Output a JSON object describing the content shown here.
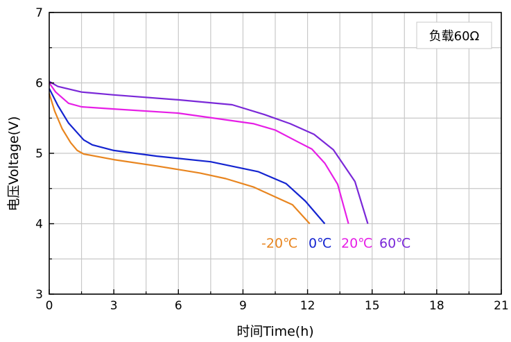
{
  "chart_data": {
    "type": "line",
    "xlabel": "时间Time(h)",
    "ylabel": "电压Voltage(V)",
    "xlim": [
      0,
      21
    ],
    "ylim": [
      3,
      7
    ],
    "xticks": [
      0,
      3,
      6,
      9,
      12,
      15,
      18,
      21
    ],
    "yticks": [
      3,
      4,
      5,
      6,
      7
    ],
    "grid": true,
    "annotation": "负载60Ω",
    "legend_placement": "inline below curves",
    "series": [
      {
        "name": "-20℃",
        "color": "#e8851f",
        "x": [
          0,
          0.25,
          0.6,
          1.0,
          1.3,
          1.6,
          3,
          5,
          7,
          8.2,
          9.5,
          10.5,
          11.3,
          12.1
        ],
        "y": [
          5.85,
          5.6,
          5.35,
          5.15,
          5.04,
          4.99,
          4.91,
          4.82,
          4.72,
          4.64,
          4.52,
          4.38,
          4.27,
          4.0
        ]
      },
      {
        "name": "0℃",
        "color": "#1424d0",
        "x": [
          0,
          0.4,
          0.9,
          1.6,
          2.0,
          3,
          5,
          7.5,
          9.7,
          11.0,
          11.9,
          12.8
        ],
        "y": [
          5.92,
          5.68,
          5.43,
          5.19,
          5.12,
          5.04,
          4.96,
          4.88,
          4.74,
          4.57,
          4.32,
          4.0
        ]
      },
      {
        "name": "20℃",
        "color": "#e61ee6",
        "x": [
          0,
          0.3,
          0.9,
          1.5,
          3,
          6,
          9.5,
          10.5,
          11.5,
          12.2,
          12.8,
          13.4,
          13.9
        ],
        "y": [
          6.0,
          5.87,
          5.71,
          5.66,
          5.63,
          5.57,
          5.42,
          5.33,
          5.17,
          5.06,
          4.86,
          4.56,
          4.0
        ]
      },
      {
        "name": "60℃",
        "color": "#7a28d8",
        "x": [
          0,
          0.4,
          1.5,
          3,
          6,
          8.5,
          10,
          11.2,
          12.3,
          13.2,
          14.2,
          14.8
        ],
        "y": [
          6.02,
          5.95,
          5.87,
          5.83,
          5.76,
          5.69,
          5.55,
          5.42,
          5.27,
          5.05,
          4.6,
          4.0
        ]
      }
    ]
  }
}
